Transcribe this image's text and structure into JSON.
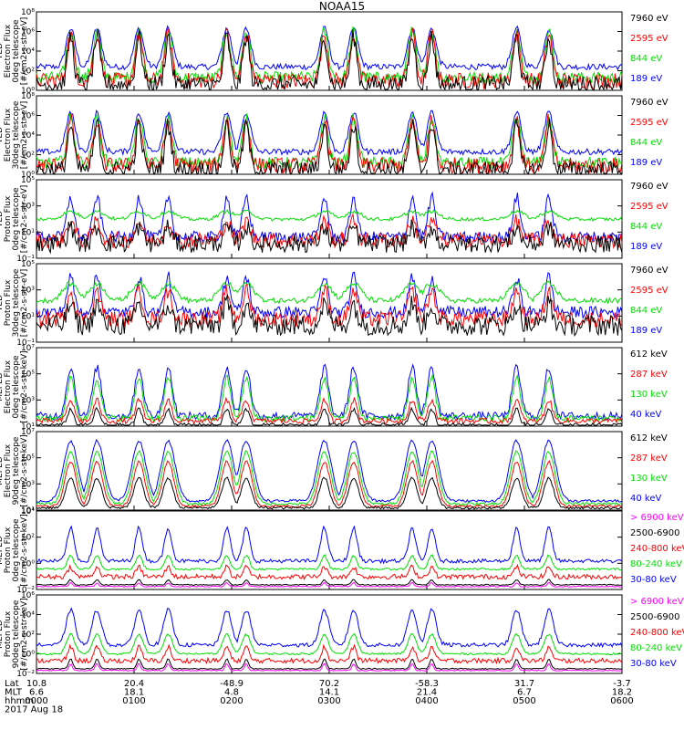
{
  "title": "NOAA15",
  "colors": {
    "blue": "#0000ff",
    "red": "#ff0000",
    "green": "#00e000",
    "black": "#000000",
    "magenta": "#ff00ff"
  },
  "footer": {
    "row_labels": [
      "Lat",
      "MLT",
      "hhmm",
      "2017 Aug 18"
    ],
    "columns": [
      {
        "lat": "10.8",
        "mlt": "6.6",
        "hhmm": "0000"
      },
      {
        "lat": "20.4",
        "mlt": "18.1",
        "hhmm": "0100"
      },
      {
        "lat": "-48.9",
        "mlt": "4.8",
        "hhmm": "0200"
      },
      {
        "lat": "70.2",
        "mlt": "14.1",
        "hhmm": "0300"
      },
      {
        "lat": "-58.3",
        "mlt": "21.4",
        "hhmm": "0400"
      },
      {
        "lat": "31.7",
        "mlt": "6.7",
        "hhmm": "0500"
      },
      {
        "lat": "-3.7",
        "mlt": "18.2",
        "hhmm": "0600"
      }
    ]
  },
  "chart_data": [
    {
      "type": "line",
      "xlabel": "",
      "grid": false,
      "ylabel": [
        "TED",
        "Electron Flux",
        "0deg telescope",
        "[#/cm2-s-str-eV]"
      ],
      "yticks": [
        "10⁰",
        "10²",
        "10⁴",
        "10⁶",
        "10⁸"
      ],
      "ylim": [
        1,
        100000000
      ],
      "scale": "log",
      "legend_position": "right",
      "series": [
        {
          "name": "7960 eV",
          "color": "#000000",
          "base": 4,
          "peak": 300000,
          "width": 0.9,
          "noise": 1.8,
          "floor": 1
        },
        {
          "name": "2595 eV",
          "color": "#ff0000",
          "base": 10,
          "peak": 500000,
          "width": 1.0,
          "noise": 1.6,
          "floor": 1
        },
        {
          "name": "844 eV",
          "color": "#00e000",
          "base": 20,
          "peak": 1000000,
          "width": 1.1,
          "noise": 1.2,
          "floor": 1
        },
        {
          "name": "189 eV",
          "color": "#0000ff",
          "base": 250,
          "peak": 2000000,
          "width": 1.3,
          "noise": 0.6,
          "floor": 1
        }
      ]
    },
    {
      "type": "line",
      "xlabel": "",
      "grid": false,
      "ylabel": [
        "TED",
        "Electron Flux",
        "30deg telescope",
        "[#/cm2-s-str-eV]"
      ],
      "yticks": [
        "10⁰",
        "10²",
        "10⁴",
        "10⁶",
        "10⁸"
      ],
      "ylim": [
        1,
        100000000
      ],
      "scale": "log",
      "legend_position": "right",
      "series": [
        {
          "name": "7960 eV",
          "color": "#000000",
          "base": 3,
          "peak": 100000,
          "width": 0.9,
          "noise": 1.8,
          "floor": 1
        },
        {
          "name": "2595 eV",
          "color": "#ff0000",
          "base": 8,
          "peak": 300000,
          "width": 1.0,
          "noise": 1.6,
          "floor": 1
        },
        {
          "name": "844 eV",
          "color": "#00e000",
          "base": 15,
          "peak": 500000,
          "width": 1.1,
          "noise": 1.2,
          "floor": 1
        },
        {
          "name": "189 eV",
          "color": "#0000ff",
          "base": 200,
          "peak": 2000000,
          "width": 1.3,
          "noise": 0.6,
          "floor": 1
        }
      ]
    },
    {
      "type": "line",
      "xlabel": "",
      "grid": false,
      "ylabel": [
        "TED",
        "Proton Flux",
        "0deg telescope",
        "[#/cm2-s-str-eV]"
      ],
      "yticks": [
        "10⁻¹",
        "10¹",
        "10³",
        "10⁵"
      ],
      "ylim": [
        0.1,
        1000000
      ],
      "scale": "log",
      "legend_position": "right",
      "series": [
        {
          "name": "7960 eV",
          "color": "#000000",
          "base": 2,
          "peak": 60,
          "width": 1.0,
          "noise": 1.6,
          "floor": 0.1
        },
        {
          "name": "2595 eV",
          "color": "#ff0000",
          "base": 4,
          "peak": 200,
          "width": 1.1,
          "noise": 1.4,
          "floor": 0.1
        },
        {
          "name": "844 eV",
          "color": "#00e000",
          "base": 300,
          "peak": 1500,
          "width": 2.2,
          "noise": 0.3,
          "floor": 0.1
        },
        {
          "name": "189 eV",
          "color": "#0000ff",
          "base": 8,
          "peak": 30000,
          "width": 1.0,
          "noise": 1.0,
          "floor": 0.1
        }
      ]
    },
    {
      "type": "line",
      "xlabel": "",
      "grid": false,
      "ylabel": [
        "TED",
        "Proton Flux",
        "30deg telescope",
        "[#/cm2-s-str-eV]"
      ],
      "yticks": [
        "10⁻¹",
        "10¹",
        "10³",
        "10⁵"
      ],
      "ylim": [
        0.1,
        100000
      ],
      "scale": "log",
      "legend_position": "right",
      "series": [
        {
          "name": "7960 eV",
          "color": "#000000",
          "base": 2,
          "peak": 80,
          "width": 1.0,
          "noise": 1.6,
          "floor": 0.1
        },
        {
          "name": "2595 eV",
          "color": "#ff0000",
          "base": 6,
          "peak": 800,
          "width": 1.1,
          "noise": 1.2,
          "floor": 0.1
        },
        {
          "name": "844 eV",
          "color": "#00e000",
          "base": 150,
          "peak": 3000,
          "width": 2.2,
          "noise": 0.4,
          "floor": 0.1
        },
        {
          "name": "189 eV",
          "color": "#0000ff",
          "base": 20,
          "peak": 10000,
          "width": 1.0,
          "noise": 0.9,
          "floor": 0.1
        }
      ]
    },
    {
      "type": "line",
      "xlabel": "",
      "grid": false,
      "ylabel": [
        "MEPED",
        "Electron Flux",
        "0deg telescope",
        "[#/cm2-s-str-keV]"
      ],
      "yticks": [
        "10¹",
        "10³",
        "10⁵",
        "10⁷"
      ],
      "ylim": [
        10,
        10000000
      ],
      "scale": "log",
      "legend_position": "right",
      "series": [
        {
          "name": "612 keV",
          "color": "#000000",
          "base": 12,
          "peak": 200,
          "width": 0.9,
          "noise": 0.3,
          "floor": 10
        },
        {
          "name": "287 keV",
          "color": "#ff0000",
          "base": 25,
          "peak": 1000,
          "width": 1.0,
          "noise": 0.4,
          "floor": 10
        },
        {
          "name": "130 keV",
          "color": "#00e000",
          "base": 40,
          "peak": 50000,
          "width": 1.1,
          "noise": 0.5,
          "floor": 10
        },
        {
          "name": "40 keV",
          "color": "#0000ff",
          "base": 60,
          "peak": 300000,
          "width": 1.2,
          "noise": 0.6,
          "floor": 10
        }
      ]
    },
    {
      "type": "line",
      "xlabel": "",
      "grid": false,
      "ylabel": [
        "MEPED",
        "Electron Flux",
        "90deg telescope",
        "[#/cm2-s-str-keV]"
      ],
      "yticks": [
        "10¹",
        "10³",
        "10⁵",
        "10⁷"
      ],
      "ylim": [
        10,
        10000000
      ],
      "scale": "log",
      "legend_position": "right",
      "series": [
        {
          "name": "612 keV",
          "color": "#000000",
          "base": 15,
          "peak": 3000,
          "width": 1.4,
          "noise": 0.2,
          "floor": 10
        },
        {
          "name": "287 keV",
          "color": "#ff0000",
          "base": 20,
          "peak": 50000,
          "width": 1.6,
          "noise": 0.2,
          "floor": 10
        },
        {
          "name": "130 keV",
          "color": "#00e000",
          "base": 30,
          "peak": 300000,
          "width": 1.8,
          "noise": 0.2,
          "floor": 10
        },
        {
          "name": "40 keV",
          "color": "#0000ff",
          "base": 50,
          "peak": 2000000,
          "width": 2.0,
          "noise": 0.2,
          "floor": 10
        }
      ]
    },
    {
      "type": "line",
      "xlabel": "",
      "grid": false,
      "ylabel": [
        "MEPED",
        "Proton Flux",
        "0deg telescope",
        "[#/cm2-s-str-keV]"
      ],
      "yticks": [
        "10⁻²",
        "10⁰",
        "10²",
        "10⁴"
      ],
      "ylim": [
        0.01,
        1000000
      ],
      "scale": "log",
      "legend_position": "right",
      "series": [
        {
          "name": "> 6900 keV",
          "color": "#ff00ff",
          "base": 0.02,
          "peak": 0.05,
          "width": 0.5,
          "noise": 0.1,
          "floor": 0.01
        },
        {
          "name": "2500-6900",
          "color": "#000000",
          "base": 0.03,
          "peak": 0.1,
          "width": 0.6,
          "noise": 0.1,
          "floor": 0.01
        },
        {
          "name": "240-800 keV",
          "color": "#ff0000",
          "base": 0.2,
          "peak": 2,
          "width": 0.8,
          "noise": 0.5,
          "floor": 0.01
        },
        {
          "name": "80-240 keV",
          "color": "#00e000",
          "base": 1.2,
          "peak": 30,
          "width": 0.9,
          "noise": 0.2,
          "floor": 0.01
        },
        {
          "name": "30-80 keV",
          "color": "#0000ff",
          "base": 8,
          "peak": 20000,
          "width": 1.0,
          "noise": 0.4,
          "floor": 0.01
        }
      ]
    },
    {
      "type": "line",
      "xlabel": "",
      "grid": false,
      "ylabel": [
        "MEPED",
        "Proton Flux",
        "90deg telescope",
        "[#/cm2-s-str-keV]"
      ],
      "yticks": [
        "10⁻²",
        "10⁰",
        "10²",
        "10⁴",
        "10⁶"
      ],
      "ylim": [
        0.01,
        1000000
      ],
      "scale": "log",
      "legend_position": "right",
      "series": [
        {
          "name": "> 6900 keV",
          "color": "#ff00ff",
          "base": 0.02,
          "peak": 0.1,
          "width": 0.5,
          "noise": 0.1,
          "floor": 0.01
        },
        {
          "name": "2500-6900",
          "color": "#000000",
          "base": 0.03,
          "peak": 0.3,
          "width": 0.6,
          "noise": 0.1,
          "floor": 0.01
        },
        {
          "name": "240-800 keV",
          "color": "#ff0000",
          "base": 0.2,
          "peak": 5,
          "width": 0.8,
          "noise": 0.5,
          "floor": 0.01
        },
        {
          "name": "80-240 keV",
          "color": "#00e000",
          "base": 1.0,
          "peak": 100,
          "width": 1.2,
          "noise": 0.2,
          "floor": 0.01
        },
        {
          "name": "30-80 keV",
          "color": "#0000ff",
          "base": 8,
          "peak": 30000,
          "width": 1.3,
          "noise": 0.4,
          "floor": 0.01
        }
      ]
    }
  ],
  "event_times_hours": [
    0.35,
    0.62,
    1.05,
    1.35,
    1.95,
    2.15,
    2.95,
    3.25,
    3.85,
    4.05,
    4.92,
    5.25
  ]
}
